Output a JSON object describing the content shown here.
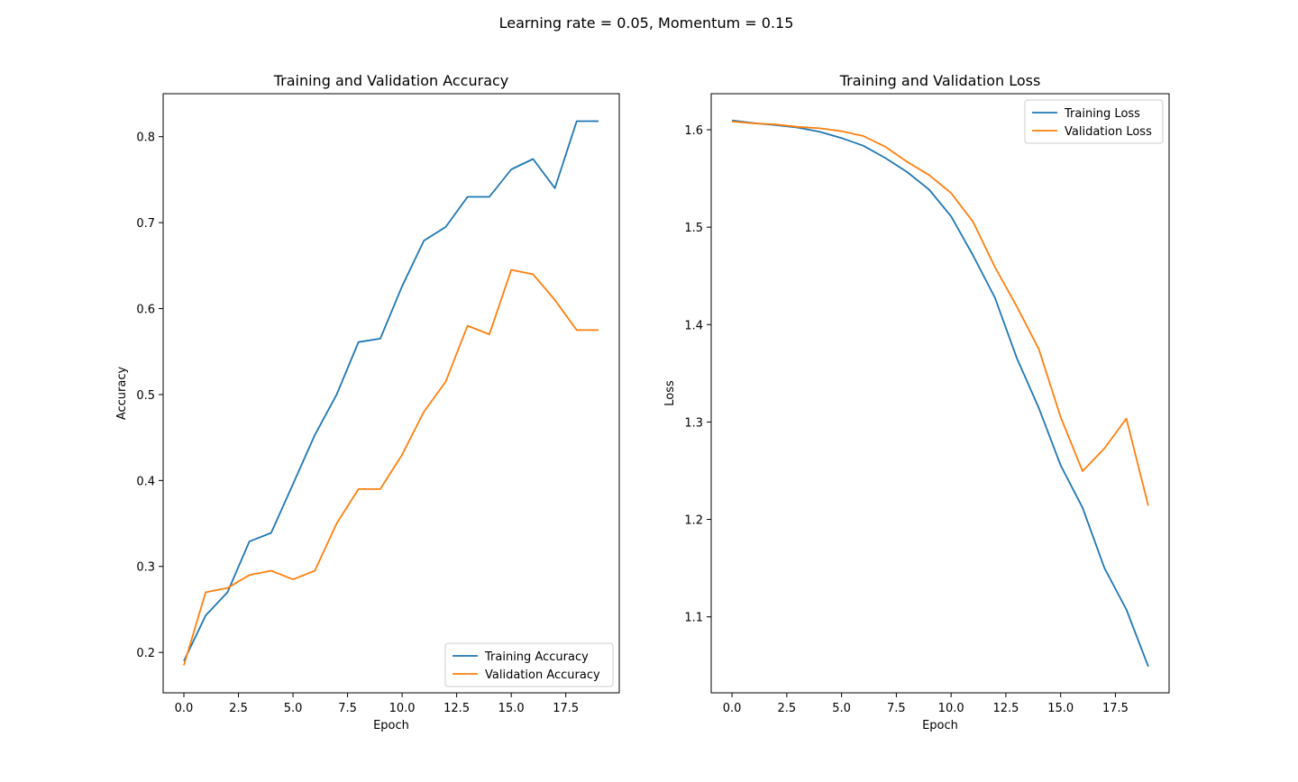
{
  "suptitle": "Learning rate = 0.05, Momentum = 0.15",
  "chart_data": [
    {
      "type": "line",
      "title": "Training and Validation Accuracy",
      "xlabel": "Epoch",
      "ylabel": "Accuracy",
      "xlim": [
        -0.95,
        19.95
      ],
      "ylim": [
        0.153,
        0.85
      ],
      "xticks": [
        0.0,
        2.5,
        5.0,
        7.5,
        10.0,
        12.5,
        15.0,
        17.5
      ],
      "xtick_labels": [
        "0.0",
        "2.5",
        "5.0",
        "7.5",
        "10.0",
        "12.5",
        "15.0",
        "17.5"
      ],
      "yticks": [
        0.2,
        0.3,
        0.4,
        0.5,
        0.6,
        0.7,
        0.8
      ],
      "ytick_labels": [
        "0.2",
        "0.3",
        "0.4",
        "0.5",
        "0.6",
        "0.7",
        "0.8"
      ],
      "legend_position": "lower-right",
      "grid": false,
      "x": [
        0,
        1,
        2,
        3,
        4,
        5,
        6,
        7,
        8,
        9,
        10,
        11,
        12,
        13,
        14,
        15,
        16,
        17,
        18,
        19
      ],
      "series": [
        {
          "name": "Training Accuracy",
          "color": "#1f77b4",
          "values": [
            0.19,
            0.243,
            0.27,
            0.329,
            0.339,
            0.396,
            0.453,
            0.5,
            0.561,
            0.565,
            0.626,
            0.679,
            0.695,
            0.73,
            0.73,
            0.762,
            0.774,
            0.74,
            0.818,
            0.818
          ]
        },
        {
          "name": "Validation Accuracy",
          "color": "#ff7f0e",
          "values": [
            0.185,
            0.27,
            0.275,
            0.29,
            0.295,
            0.285,
            0.295,
            0.35,
            0.39,
            0.39,
            0.43,
            0.48,
            0.515,
            0.58,
            0.57,
            0.645,
            0.64,
            0.61,
            0.575,
            0.575
          ]
        }
      ]
    },
    {
      "type": "line",
      "title": "Training and Validation Loss",
      "xlabel": "Epoch",
      "ylabel": "Loss",
      "xlim": [
        -0.95,
        19.95
      ],
      "ylim": [
        1.022,
        1.637
      ],
      "xticks": [
        0.0,
        2.5,
        5.0,
        7.5,
        10.0,
        12.5,
        15.0,
        17.5
      ],
      "xtick_labels": [
        "0.0",
        "2.5",
        "5.0",
        "7.5",
        "10.0",
        "12.5",
        "15.0",
        "17.5"
      ],
      "yticks": [
        1.1,
        1.2,
        1.3,
        1.4,
        1.5,
        1.6
      ],
      "ytick_labels": [
        "1.1",
        "1.2",
        "1.3",
        "1.4",
        "1.5",
        "1.6"
      ],
      "legend_position": "upper-right",
      "grid": false,
      "x": [
        0,
        1,
        2,
        3,
        4,
        5,
        6,
        7,
        8,
        9,
        10,
        11,
        12,
        13,
        14,
        15,
        16,
        17,
        18,
        19
      ],
      "series": [
        {
          "name": "Training Loss",
          "color": "#1f77b4",
          "values": [
            1.6095,
            1.6068,
            1.6048,
            1.6022,
            1.598,
            1.5915,
            1.5835,
            1.571,
            1.5565,
            1.5385,
            1.511,
            1.471,
            1.4275,
            1.3655,
            1.3145,
            1.2555,
            1.212,
            1.15,
            1.1075,
            1.049
          ]
        },
        {
          "name": "Validation Loss",
          "color": "#ff7f0e",
          "values": [
            1.6085,
            1.6065,
            1.6055,
            1.603,
            1.6015,
            1.5985,
            1.5935,
            1.5825,
            1.567,
            1.5535,
            1.535,
            1.5055,
            1.459,
            1.4185,
            1.375,
            1.305,
            1.2495,
            1.273,
            1.3035,
            1.214
          ]
        }
      ]
    }
  ]
}
